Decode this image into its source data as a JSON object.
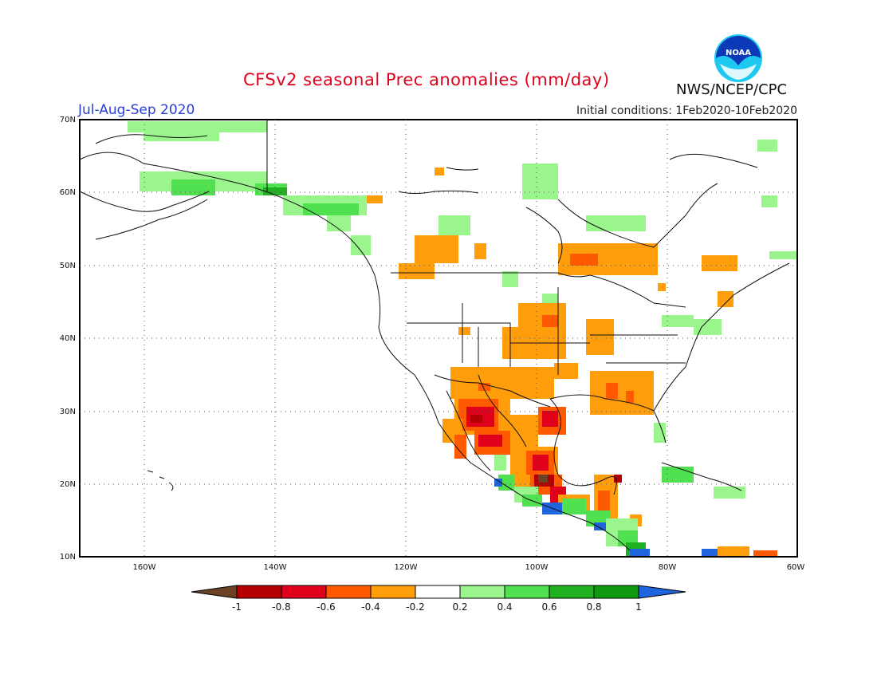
{
  "header": {
    "title": "CFSv2 seasonal Prec anomalies (mm/day)",
    "season": "Jul-Aug-Sep 2020",
    "initial_conditions": "Initial conditions: 1Feb2020-10Feb2020",
    "agency": "NWS/NCEP/CPC",
    "logo_text": "NOAA"
  },
  "map": {
    "lat_labels": [
      "70N",
      "60N",
      "50N",
      "40N",
      "30N",
      "20N",
      "10N"
    ],
    "lon_labels": [
      "160W",
      "140W",
      "120W",
      "100W",
      "80W",
      "60W"
    ]
  },
  "colorbar": {
    "labels": [
      "-1",
      "-0.8",
      "-0.6",
      "-0.4",
      "-0.2",
      "0.2",
      "0.4",
      "0.6",
      "0.8",
      "1"
    ],
    "colors": [
      "#6b4226",
      "#b40000",
      "#e0001b",
      "#ff5a00",
      "#ff9e0a",
      "#ffffff",
      "#9af58c",
      "#50e050",
      "#20b020",
      "#0f9a12",
      "#1e64dc"
    ]
  },
  "colors": {
    "title": "#e0001b",
    "season": "#2a3fd8",
    "noaa_blue": "#0a3ab8",
    "noaa_cyan": "#1ec8f0"
  }
}
